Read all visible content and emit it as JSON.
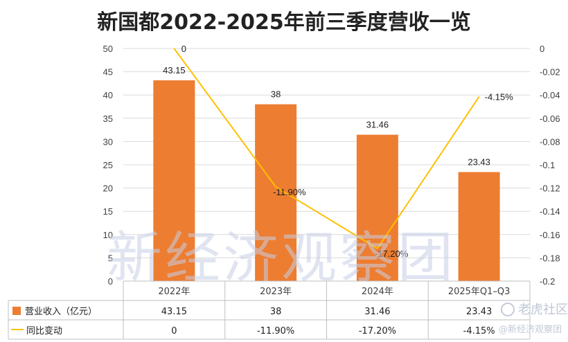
{
  "chart_data": {
    "type": "bar",
    "title": "新国都2022-2025年前三季度营收一览",
    "categories": [
      "2022年",
      "2023年",
      "2024年",
      "2025年Q1–Q3"
    ],
    "ylim_left": [
      0,
      50
    ],
    "ylim_right": [
      -0.2,
      0
    ],
    "left_ticks": [
      "0",
      "5",
      "10",
      "15",
      "20",
      "25",
      "30",
      "35",
      "40",
      "45",
      "50"
    ],
    "right_ticks": [
      "-0.2",
      "-0.18",
      "-0.16",
      "-0.14",
      "-0.12",
      "-0.1",
      "-0.08",
      "-0.06",
      "-0.04",
      "-0.02",
      "0"
    ],
    "grid": true,
    "legend": "bottom-table",
    "series": [
      {
        "name": "营业收入（亿元）",
        "type": "bar",
        "axis": "left",
        "color": "#ed7d31",
        "values": [
          43.15,
          38,
          31.46,
          23.43
        ],
        "labels": [
          "43.15",
          "38",
          "31.46",
          "23.43"
        ]
      },
      {
        "name": "同比变动",
        "type": "line",
        "axis": "right",
        "color": "#ffc000",
        "values": [
          0,
          -0.119,
          -0.172,
          -0.0415
        ],
        "labels": [
          "0",
          "-11.90%",
          "-17.20%",
          "-4.15%"
        ]
      }
    ]
  },
  "watermark": {
    "main": "新经济观察团",
    "badge": "老虎社区",
    "source": "@新经济观察团"
  }
}
